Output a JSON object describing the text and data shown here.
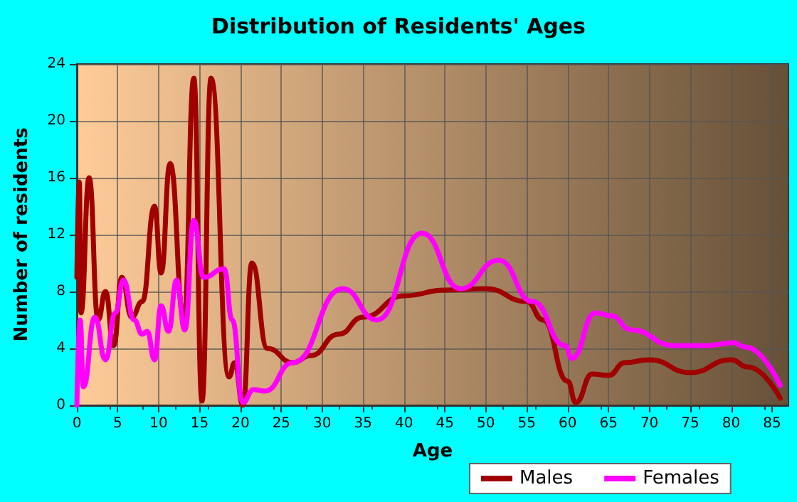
{
  "chart_data": {
    "type": "line",
    "title": "Distribution of Residents' Ages",
    "xlabel": "Age",
    "ylabel": "Number of residents",
    "xlim": [
      0,
      87
    ],
    "xticks": [
      0,
      5,
      10,
      15,
      20,
      25,
      30,
      35,
      40,
      45,
      50,
      55,
      60,
      65,
      70,
      75,
      80,
      85
    ],
    "ylim": [
      0,
      24
    ],
    "yticks": [
      0,
      4,
      8,
      12,
      16,
      20,
      24
    ],
    "grid": true,
    "legend": "bottom",
    "marker": "none",
    "line_style": "solid",
    "series": [
      {
        "name": "Males",
        "color": "#a00000",
        "x": [
          0,
          0.3,
          0.5,
          1.5,
          2.6,
          3.5,
          4.5,
          5.5,
          6.7,
          8,
          9.5,
          10.3,
          11.4,
          13.1,
          14.3,
          15.3,
          16.4,
          18.6,
          19.3,
          20.3,
          21.4,
          23.3,
          26.4,
          28.6,
          32,
          35,
          40,
          45,
          50,
          55,
          57,
          60,
          61,
          63,
          65,
          67,
          70,
          75,
          80,
          82,
          86
        ],
        "values": [
          9,
          15.7,
          6.5,
          16,
          6,
          8,
          4.2,
          9,
          6.2,
          7.3,
          14,
          9.3,
          17,
          6,
          23,
          0.3,
          23,
          2,
          3,
          0,
          10,
          4,
          3,
          3.5,
          5,
          6.2,
          7.7,
          8.1,
          8.2,
          7.3,
          6,
          1.7,
          0.2,
          2.2,
          2.1,
          3,
          3.2,
          2.3,
          3.2,
          2.7,
          0.5
        ]
      },
      {
        "name": "Females",
        "color": "#ff00ff",
        "x": [
          0,
          0.4,
          0.8,
          2.2,
          3.5,
          4.7,
          5.7,
          7,
          8,
          8.6,
          9.5,
          10.3,
          11.2,
          12.2,
          13.2,
          14.3,
          15.5,
          18,
          19,
          20.3,
          21.6,
          23,
          26.4,
          32.5,
          36.7,
          42.2,
          46.9,
          51.6,
          55.7,
          59.7,
          60.5,
          63.4,
          65.3,
          67.8,
          73,
          77,
          80.3,
          81.7,
          86
        ],
        "values": [
          0,
          6,
          1.3,
          6.2,
          3.2,
          6.5,
          8.8,
          6,
          5,
          5.2,
          3.2,
          7,
          5.2,
          8.8,
          5.3,
          13,
          9,
          9.6,
          6,
          0.2,
          1.1,
          1,
          3,
          8.2,
          6,
          12.1,
          8.2,
          10.2,
          7.3,
          4.2,
          3.3,
          6.5,
          6.3,
          5.3,
          4.2,
          4.2,
          4.4,
          4.1,
          1.4
        ]
      }
    ]
  }
}
